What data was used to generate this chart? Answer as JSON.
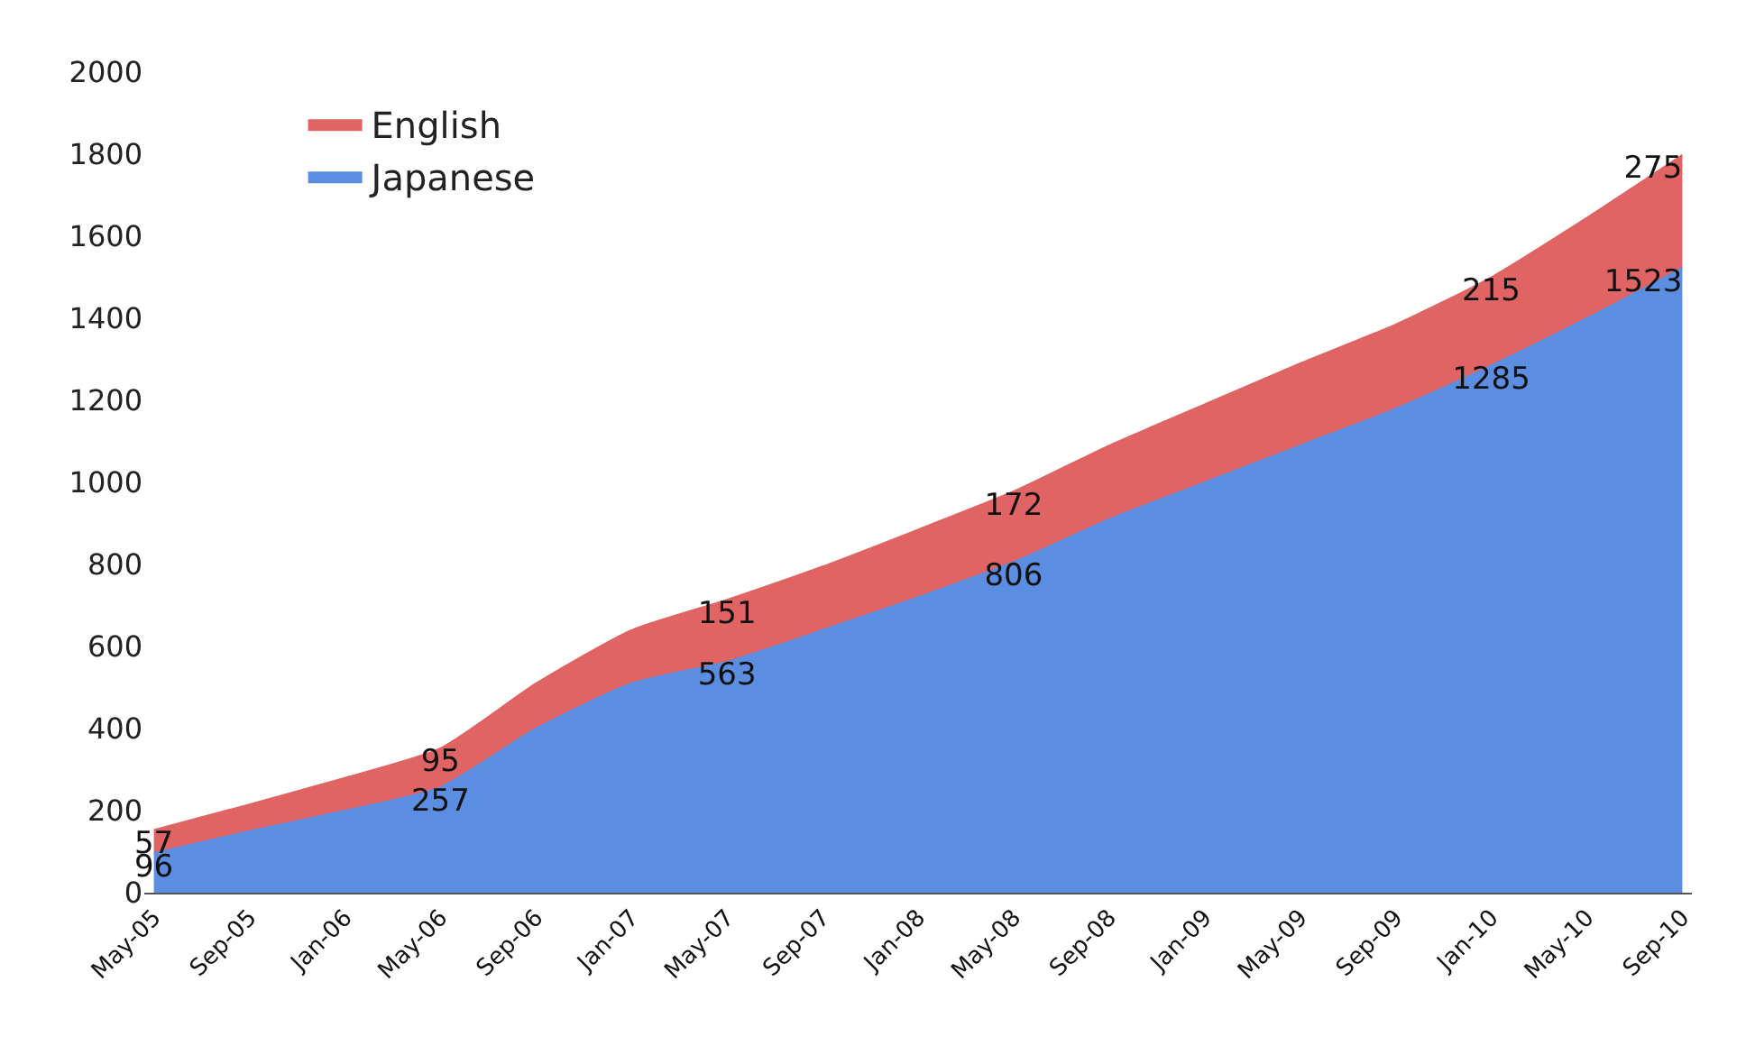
{
  "chart_data": {
    "type": "area",
    "stacked": true,
    "categories": [
      "May-05",
      "Sep-05",
      "Jan-06",
      "May-06",
      "Sep-06",
      "Jan-07",
      "May-07",
      "Sep-07",
      "Jan-08",
      "May-08",
      "Sep-08",
      "Jan-09",
      "May-09",
      "Sep-09",
      "Jan-10",
      "May-10",
      "Sep-10"
    ],
    "series": [
      {
        "name": "Japanese",
        "color": "#5b8ee0",
        "values": [
          96,
          150,
          200,
          257,
          400,
          510,
          563,
          640,
          720,
          806,
          910,
          1000,
          1090,
          1180,
          1285,
          1400,
          1523
        ],
        "value_labels": [
          "96",
          null,
          null,
          "257",
          null,
          null,
          "563",
          null,
          null,
          "806",
          null,
          null,
          null,
          null,
          "1285",
          null,
          "1523"
        ]
      },
      {
        "name": "English",
        "color": "#e06464",
        "values": [
          57,
          65,
          80,
          95,
          110,
          130,
          151,
          155,
          165,
          172,
          180,
          190,
          200,
          205,
          215,
          245,
          275
        ],
        "value_labels": [
          "57",
          null,
          null,
          "95",
          null,
          null,
          "151",
          null,
          null,
          "172",
          null,
          null,
          null,
          null,
          "215",
          null,
          "275"
        ]
      }
    ],
    "ylim": [
      0,
      2000
    ],
    "yticks": [
      0,
      200,
      400,
      600,
      800,
      1000,
      1200,
      1400,
      1600,
      1800,
      2000
    ],
    "legend": "top left"
  }
}
